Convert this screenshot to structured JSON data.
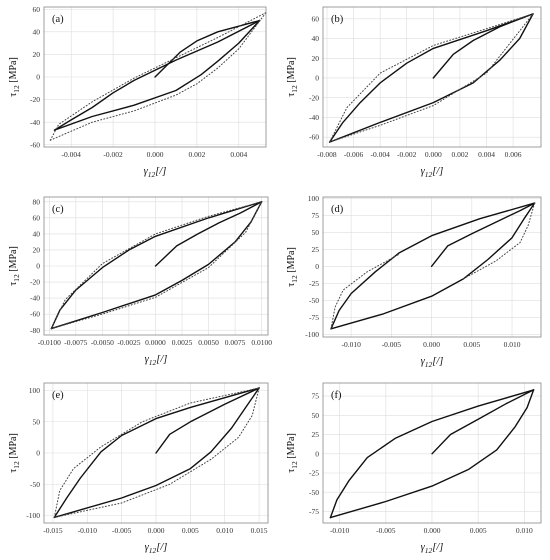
{
  "figure": {
    "grid": true,
    "colors": {
      "experiment": "#111111",
      "model": "#444444",
      "grid": "#dddddd",
      "frame": "#888888"
    }
  },
  "chart_data": [
    {
      "type": "line",
      "panel": "(a)",
      "xlabel": "γ12[/]",
      "ylabel": "τ12 [MPa]",
      "xlim": [
        -0.0053,
        0.0053
      ],
      "ylim": [
        -62,
        62
      ],
      "xticks": [
        -0.004,
        -0.002,
        0.0,
        0.002,
        0.004
      ],
      "xtick_labels": [
        "-0.004",
        "-0.002",
        "0.000",
        "0.002",
        "0.004"
      ],
      "yticks": [
        -60,
        -40,
        -20,
        0,
        20,
        40,
        60
      ],
      "ytick_labels": [
        "-60",
        "-40",
        "-20",
        "0",
        "20",
        "40",
        "60"
      ],
      "series": [
        {
          "style": "solid",
          "points": [
            [
              0,
              0
            ],
            [
              0.0012,
              22
            ],
            [
              0.002,
              32
            ],
            [
              0.003,
              40
            ],
            [
              0.004,
              45
            ],
            [
              0.005,
              50
            ]
          ]
        },
        {
          "style": "solid",
          "points": [
            [
              0.005,
              50
            ],
            [
              0.003,
              31
            ],
            [
              0.001,
              15
            ],
            [
              -0.001,
              -3
            ],
            [
              -0.002,
              -14
            ],
            [
              -0.003,
              -27
            ],
            [
              -0.004,
              -38
            ],
            [
              -0.0048,
              -47
            ]
          ]
        },
        {
          "style": "solid",
          "points": [
            [
              -0.0048,
              -47
            ],
            [
              -0.003,
              -35
            ],
            [
              -0.001,
              -25
            ],
            [
              0.001,
              -12
            ],
            [
              0.0022,
              2
            ],
            [
              0.003,
              14
            ],
            [
              0.004,
              30
            ],
            [
              0.005,
              50
            ]
          ]
        },
        {
          "style": "dotted",
          "points": [
            [
              0.0053,
              57
            ],
            [
              0.003,
              35
            ],
            [
              0.001,
              17
            ],
            [
              -0.001,
              -1
            ],
            [
              -0.003,
              -22
            ],
            [
              -0.0046,
              -42
            ],
            [
              -0.005,
              -56
            ]
          ]
        },
        {
          "style": "dotted",
          "points": [
            [
              -0.005,
              -56
            ],
            [
              -0.003,
              -40
            ],
            [
              -0.001,
              -30
            ],
            [
              0.001,
              -16
            ],
            [
              0.002,
              -6
            ],
            [
              0.003,
              8
            ],
            [
              0.004,
              25
            ],
            [
              0.0053,
              57
            ]
          ]
        }
      ]
    },
    {
      "type": "line",
      "panel": "(b)",
      "xlabel": "γ12[/]",
      "ylabel": "τ12 [MPa]",
      "xlim": [
        -0.0083,
        0.0081
      ],
      "ylim": [
        -70,
        72
      ],
      "xticks": [
        -0.008,
        -0.006,
        -0.004,
        -0.002,
        0.0,
        0.002,
        0.004,
        0.006
      ],
      "xtick_labels": [
        "-0.008",
        "-0.006",
        "-0.004",
        "-0.002",
        "0.000",
        "0.002",
        "0.004",
        "0.006"
      ],
      "yticks": [
        -60,
        -40,
        -20,
        0,
        20,
        40,
        60
      ],
      "ytick_labels": [
        "-60",
        "-40",
        "-20",
        "0",
        "20",
        "40",
        "60"
      ],
      "series": [
        {
          "style": "solid",
          "points": [
            [
              0,
              0
            ],
            [
              0.0015,
              24
            ],
            [
              0.003,
              38
            ],
            [
              0.005,
              52
            ],
            [
              0.0075,
              65
            ]
          ]
        },
        {
          "style": "solid",
          "points": [
            [
              0.0075,
              65
            ],
            [
              0.004,
              48
            ],
            [
              0,
              30
            ],
            [
              -0.002,
              15
            ],
            [
              -0.004,
              -5
            ],
            [
              -0.0055,
              -25
            ],
            [
              -0.0068,
              -45
            ],
            [
              -0.0078,
              -65
            ]
          ]
        },
        {
          "style": "solid",
          "points": [
            [
              -0.0078,
              -65
            ],
            [
              -0.004,
              -45
            ],
            [
              0,
              -25
            ],
            [
              0.003,
              -5
            ],
            [
              0.005,
              18
            ],
            [
              0.0065,
              40
            ],
            [
              0.0075,
              65
            ]
          ]
        },
        {
          "style": "dotted",
          "points": [
            [
              0.0075,
              65
            ],
            [
              0.004,
              50
            ],
            [
              0,
              33
            ],
            [
              -0.004,
              5
            ],
            [
              -0.0065,
              -30
            ],
            [
              -0.0078,
              -65
            ]
          ]
        },
        {
          "style": "dotted",
          "points": [
            [
              -0.0078,
              -65
            ],
            [
              -0.004,
              -48
            ],
            [
              0,
              -28
            ],
            [
              0.004,
              5
            ],
            [
              0.0075,
              65
            ]
          ]
        }
      ]
    },
    {
      "type": "line",
      "panel": "(c)",
      "xlabel": "γ12[/]",
      "ylabel": "τ12 [MPa]",
      "xlim": [
        -0.0105,
        0.0106
      ],
      "ylim": [
        -86,
        86
      ],
      "xticks": [
        -0.01,
        -0.0075,
        -0.005,
        -0.0025,
        0.0,
        0.0025,
        0.005,
        0.0075,
        0.01
      ],
      "xtick_labels": [
        "-0.0100",
        "-0.0075",
        "-0.0050",
        "-0.0025",
        "0.0000",
        "0.0025",
        "0.0050",
        "0.0075",
        "0.0100"
      ],
      "yticks": [
        -80,
        -60,
        -40,
        -20,
        0,
        20,
        40,
        60,
        80
      ],
      "ytick_labels": [
        "-80",
        "-60",
        "-40",
        "-20",
        "0",
        "20",
        "40",
        "60",
        "80"
      ],
      "series": [
        {
          "style": "solid",
          "points": [
            [
              0,
              0
            ],
            [
              0.002,
              25
            ],
            [
              0.004,
              40
            ],
            [
              0.006,
              54
            ],
            [
              0.008,
              66
            ],
            [
              0.01,
              80
            ]
          ]
        },
        {
          "style": "solid",
          "points": [
            [
              0.01,
              80
            ],
            [
              0.005,
              60
            ],
            [
              0,
              37
            ],
            [
              -0.0025,
              20
            ],
            [
              -0.005,
              -2
            ],
            [
              -0.0075,
              -30
            ],
            [
              -0.009,
              -55
            ],
            [
              -0.0098,
              -78
            ]
          ]
        },
        {
          "style": "solid",
          "points": [
            [
              -0.0098,
              -78
            ],
            [
              -0.005,
              -58
            ],
            [
              0,
              -36
            ],
            [
              0.0025,
              -18
            ],
            [
              0.005,
              2
            ],
            [
              0.0075,
              30
            ],
            [
              0.009,
              55
            ],
            [
              0.01,
              80
            ]
          ]
        },
        {
          "style": "dotted",
          "points": [
            [
              0.01,
              80
            ],
            [
              0.005,
              62
            ],
            [
              0,
              40
            ],
            [
              -0.005,
              3
            ],
            [
              -0.0085,
              -42
            ],
            [
              -0.0098,
              -78
            ]
          ]
        },
        {
          "style": "dotted",
          "points": [
            [
              -0.0098,
              -78
            ],
            [
              -0.005,
              -60
            ],
            [
              0,
              -39
            ],
            [
              0.005,
              -2
            ],
            [
              0.0085,
              42
            ],
            [
              0.01,
              80
            ]
          ]
        }
      ]
    },
    {
      "type": "line",
      "panel": "(d)",
      "xlabel": "γ12[/]",
      "ylabel": "τ12 [MPa]",
      "xlim": [
        -0.0135,
        0.0136
      ],
      "ylim": [
        -104,
        102
      ],
      "xticks": [
        -0.01,
        -0.005,
        0.0,
        0.005,
        0.01
      ],
      "xtick_labels": [
        "-0.010",
        "-0.005",
        "0.000",
        "0.005",
        "0.010"
      ],
      "yticks": [
        -100,
        -75,
        -50,
        -25,
        0,
        25,
        50,
        75,
        100
      ],
      "ytick_labels": [
        "-100",
        "-75",
        "-50",
        "-25",
        "0",
        "25",
        "50",
        "75",
        "100"
      ],
      "series": [
        {
          "style": "solid",
          "points": [
            [
              0,
              0
            ],
            [
              0.002,
              30
            ],
            [
              0.005,
              48
            ],
            [
              0.008,
              65
            ],
            [
              0.011,
              82
            ],
            [
              0.0128,
              93
            ]
          ]
        },
        {
          "style": "solid",
          "points": [
            [
              0.0128,
              93
            ],
            [
              0.006,
              70
            ],
            [
              0,
              45
            ],
            [
              -0.004,
              20
            ],
            [
              -0.007,
              -8
            ],
            [
              -0.01,
              -40
            ],
            [
              -0.0115,
              -65
            ],
            [
              -0.0125,
              -92
            ]
          ]
        },
        {
          "style": "solid",
          "points": [
            [
              -0.0125,
              -92
            ],
            [
              -0.006,
              -70
            ],
            [
              0,
              -44
            ],
            [
              0.004,
              -18
            ],
            [
              0.007,
              10
            ],
            [
              0.01,
              42
            ],
            [
              0.0115,
              70
            ],
            [
              0.0128,
              93
            ]
          ]
        },
        {
          "style": "dotted",
          "points": [
            [
              -0.0125,
              -92
            ],
            [
              -0.012,
              -60
            ],
            [
              -0.011,
              -35
            ],
            [
              -0.008,
              -8
            ],
            [
              -0.004,
              18
            ]
          ]
        },
        {
          "style": "dotted",
          "points": [
            [
              0.0128,
              93
            ],
            [
              0.012,
              60
            ],
            [
              0.011,
              35
            ],
            [
              0.008,
              8
            ],
            [
              0.004,
              -18
            ]
          ]
        }
      ]
    },
    {
      "type": "line",
      "panel": "(e)",
      "xlabel": "γ12[/]",
      "ylabel": "τ12 [MPa]",
      "xlim": [
        -0.0163,
        0.0163
      ],
      "ylim": [
        -112,
        112
      ],
      "xticks": [
        -0.015,
        -0.01,
        -0.005,
        0.0,
        0.005,
        0.01,
        0.015
      ],
      "xtick_labels": [
        "-0.015",
        "-0.010",
        "-0.005",
        "0.000",
        "0.005",
        "0.010",
        "0.015"
      ],
      "yticks": [
        -100,
        -50,
        0,
        50,
        100
      ],
      "ytick_labels": [
        "-100",
        "-50",
        "0",
        "50",
        "100"
      ],
      "series": [
        {
          "style": "solid",
          "points": [
            [
              0,
              0
            ],
            [
              0.002,
              30
            ],
            [
              0.005,
              50
            ],
            [
              0.01,
              78
            ],
            [
              0.015,
              104
            ]
          ]
        },
        {
          "style": "solid",
          "points": [
            [
              0.015,
              104
            ],
            [
              0.005,
              73
            ],
            [
              0,
              55
            ],
            [
              -0.005,
              28
            ],
            [
              -0.008,
              2
            ],
            [
              -0.011,
              -40
            ],
            [
              -0.013,
              -72
            ],
            [
              -0.0148,
              -103
            ]
          ]
        },
        {
          "style": "solid",
          "points": [
            [
              -0.0148,
              -103
            ],
            [
              -0.005,
              -72
            ],
            [
              0,
              -52
            ],
            [
              0.005,
              -25
            ],
            [
              0.008,
              2
            ],
            [
              0.011,
              40
            ],
            [
              0.013,
              72
            ],
            [
              0.015,
              104
            ]
          ]
        },
        {
          "style": "dotted",
          "points": [
            [
              -0.0148,
              -103
            ],
            [
              -0.014,
              -60
            ],
            [
              -0.012,
              -25
            ],
            [
              -0.008,
              10
            ],
            [
              -0.002,
              50
            ],
            [
              0.005,
              80
            ],
            [
              0.015,
              104
            ]
          ]
        },
        {
          "style": "dotted",
          "points": [
            [
              0.015,
              104
            ],
            [
              0.014,
              60
            ],
            [
              0.012,
              25
            ],
            [
              0.008,
              -10
            ],
            [
              0.002,
              -50
            ],
            [
              -0.005,
              -80
            ],
            [
              -0.0148,
              -103
            ]
          ]
        }
      ]
    },
    {
      "type": "line",
      "panel": "(f)",
      "xlabel": "γ12[/]",
      "ylabel": "τ12 [MPa]",
      "xlim": [
        -0.0118,
        0.0118
      ],
      "ylim": [
        -90,
        92
      ],
      "xticks": [
        -0.01,
        -0.005,
        0.0,
        0.005,
        0.01
      ],
      "xtick_labels": [
        "-0.010",
        "-0.005",
        "0.000",
        "0.005",
        "0.010"
      ],
      "yticks": [
        -75,
        -50,
        -25,
        0,
        25,
        50,
        75
      ],
      "ytick_labels": [
        "-75",
        "-50",
        "-25",
        "0",
        "25",
        "50",
        "75"
      ],
      "series": [
        {
          "style": "solid",
          "points": [
            [
              0,
              0
            ],
            [
              0.002,
              25
            ],
            [
              0.005,
              45
            ],
            [
              0.008,
              65
            ],
            [
              0.011,
              83
            ]
          ]
        },
        {
          "style": "solid",
          "points": [
            [
              0.011,
              83
            ],
            [
              0.005,
              62
            ],
            [
              0,
              42
            ],
            [
              -0.004,
              20
            ],
            [
              -0.007,
              -5
            ],
            [
              -0.009,
              -35
            ],
            [
              -0.0103,
              -60
            ],
            [
              -0.011,
              -83
            ]
          ]
        },
        {
          "style": "solid",
          "points": [
            [
              -0.011,
              -83
            ],
            [
              -0.005,
              -62
            ],
            [
              0,
              -42
            ],
            [
              0.004,
              -20
            ],
            [
              0.007,
              5
            ],
            [
              0.009,
              35
            ],
            [
              0.0103,
              60
            ],
            [
              0.011,
              83
            ]
          ]
        }
      ]
    }
  ]
}
